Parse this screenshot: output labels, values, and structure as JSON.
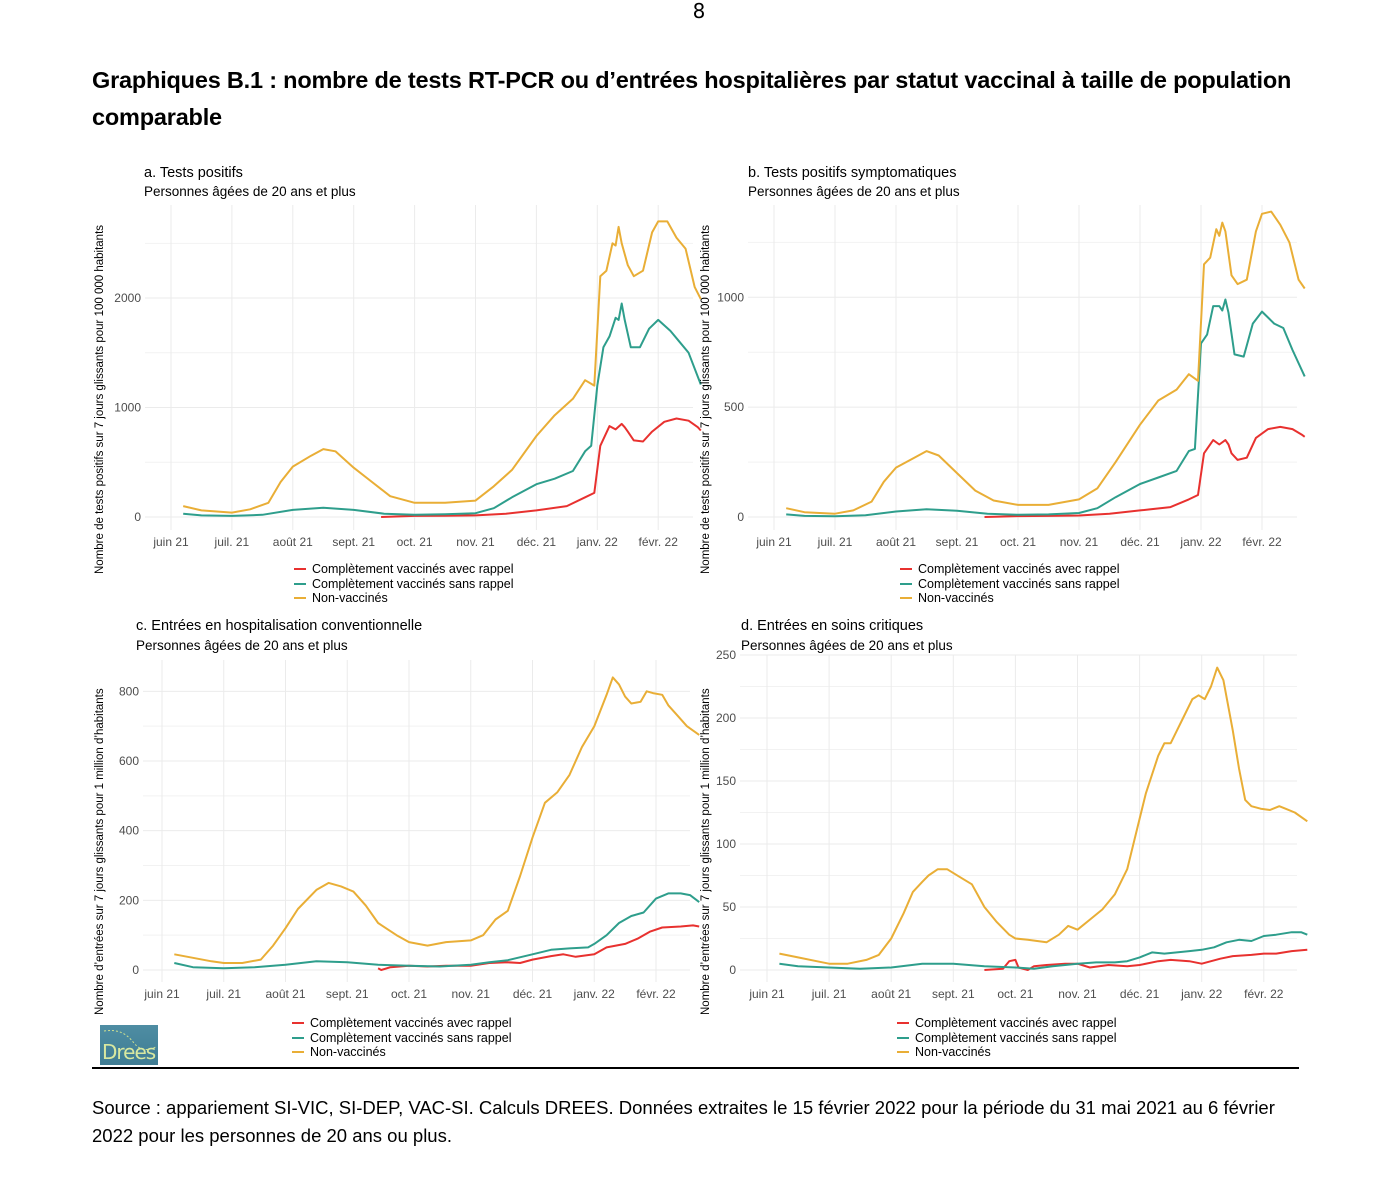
{
  "page_number": "8",
  "heading": "Graphiques B.1 : nombre de tests RT-PCR ou d’entrées hospitalières par statut vaccinal à taille de population comparable",
  "source": "Source : appariement SI-VIC, SI-DEP, VAC-SI. Calculs DREES. Données extraites le 15 février 2022 pour la période du 31 mai 2021 au 6 février 2022 pour les personnes de 20 ans ou plus.",
  "logo_text": "Drees",
  "colors": {
    "avec_rappel": "#e8312f",
    "sans_rappel": "#2e9e8c",
    "non_vaccines": "#e9ae36"
  },
  "legend": [
    "Complètement vaccinés avec rappel",
    "Complètement vaccinés sans rappel",
    "Non-vaccinés"
  ],
  "chart_data": [
    {
      "id": "a",
      "type": "line",
      "title": "a. Tests positifs",
      "subtitle": "Personnes âgées de 20 ans et plus",
      "ylabel": "Nombre de tests positifs sur 7 jours glissants pour 100 000 habitants",
      "xlabel": "",
      "x_ticks": [
        "juin 21",
        "juil. 21",
        "août 21",
        "sept. 21",
        "oct. 21",
        "nov. 21",
        "déc. 21",
        "janv. 22",
        "févr. 22"
      ],
      "y_ticks": [
        0,
        1000,
        2000
      ],
      "ylim": [
        -100,
        2850
      ],
      "grid": true,
      "legend_position": "bottom",
      "x_unit": "months since 1 June 2021",
      "series": [
        {
          "name": "Complètement vaccinés avec rappel",
          "key": "avec_rappel",
          "x": [
            3.45,
            3.7,
            4.0,
            4.5,
            5.0,
            5.5,
            6.0,
            6.5,
            6.8,
            6.95,
            7.05,
            7.2,
            7.3,
            7.4,
            7.45,
            7.5,
            7.6,
            7.75,
            7.9,
            8.1,
            8.3,
            8.5,
            8.65,
            8.7
          ],
          "y": [
            0,
            5,
            10,
            12,
            15,
            30,
            60,
            100,
            180,
            220,
            650,
            830,
            800,
            850,
            820,
            780,
            700,
            690,
            780,
            870,
            900,
            880,
            820,
            790
          ]
        },
        {
          "name": "Complètement vaccinés sans rappel",
          "key": "sans_rappel",
          "x": [
            0.2,
            0.5,
            1.0,
            1.5,
            2.0,
            2.5,
            3.0,
            3.5,
            4.0,
            4.5,
            5.0,
            5.3,
            5.6,
            6.0,
            6.3,
            6.6,
            6.8,
            6.9,
            7.0,
            7.1,
            7.2,
            7.3,
            7.35,
            7.4,
            7.45,
            7.55,
            7.7,
            7.85,
            8.0,
            8.2,
            8.35,
            8.5,
            8.7
          ],
          "y": [
            30,
            15,
            10,
            20,
            65,
            85,
            65,
            30,
            20,
            25,
            35,
            80,
            180,
            300,
            350,
            420,
            600,
            650,
            1200,
            1550,
            1650,
            1820,
            1800,
            1950,
            1800,
            1550,
            1550,
            1720,
            1800,
            1700,
            1600,
            1500,
            1210
          ]
        },
        {
          "name": "Non-vaccinés",
          "key": "non_vaccines",
          "x": [
            0.2,
            0.5,
            1.0,
            1.3,
            1.6,
            1.8,
            2.0,
            2.3,
            2.5,
            2.7,
            3.0,
            3.3,
            3.6,
            4.0,
            4.5,
            5.0,
            5.3,
            5.6,
            6.0,
            6.3,
            6.6,
            6.8,
            6.95,
            7.05,
            7.15,
            7.25,
            7.3,
            7.35,
            7.4,
            7.5,
            7.6,
            7.75,
            7.9,
            8.0,
            8.15,
            8.3,
            8.45,
            8.6,
            8.7
          ],
          "y": [
            100,
            60,
            40,
            70,
            130,
            320,
            460,
            560,
            620,
            600,
            450,
            320,
            190,
            130,
            130,
            150,
            280,
            430,
            740,
            930,
            1080,
            1250,
            1200,
            2200,
            2250,
            2500,
            2480,
            2650,
            2500,
            2300,
            2200,
            2250,
            2600,
            2700,
            2700,
            2550,
            2450,
            2100,
            1990
          ]
        }
      ]
    },
    {
      "id": "b",
      "type": "line",
      "title": "b. Tests positifs symptomatiques",
      "subtitle": "Personnes âgées de 20 ans et plus",
      "ylabel": "Nombre de tests positifs sur 7 jours glissants pour 100 000 habitants",
      "xlabel": "",
      "x_ticks": [
        "juin 21",
        "juil. 21",
        "août 21",
        "sept. 21",
        "oct. 21",
        "nov. 21",
        "déc. 21",
        "janv. 22",
        "févr. 22"
      ],
      "y_ticks": [
        0,
        500,
        1000
      ],
      "ylim": [
        -40,
        1420
      ],
      "grid": true,
      "legend_position": "bottom",
      "x_unit": "months since 1 June 2021",
      "series": [
        {
          "name": "Complètement vaccinés avec rappel",
          "key": "avec_rappel",
          "x": [
            3.45,
            3.7,
            4.0,
            4.5,
            5.0,
            5.5,
            6.0,
            6.5,
            6.8,
            6.95,
            7.05,
            7.2,
            7.3,
            7.4,
            7.45,
            7.5,
            7.6,
            7.75,
            7.9,
            8.1,
            8.3,
            8.5,
            8.65,
            8.7
          ],
          "y": [
            0,
            2,
            4,
            5,
            7,
            15,
            30,
            45,
            80,
            100,
            290,
            350,
            330,
            350,
            330,
            290,
            260,
            270,
            360,
            400,
            410,
            400,
            375,
            365
          ]
        },
        {
          "name": "Complètement vaccinés sans rappel",
          "key": "sans_rappel",
          "x": [
            0.2,
            0.5,
            1.0,
            1.5,
            2.0,
            2.5,
            3.0,
            3.5,
            4.0,
            4.5,
            5.0,
            5.3,
            5.6,
            6.0,
            6.3,
            6.6,
            6.8,
            6.9,
            7.0,
            7.1,
            7.2,
            7.3,
            7.35,
            7.4,
            7.45,
            7.55,
            7.7,
            7.85,
            8.0,
            8.2,
            8.35,
            8.5,
            8.7
          ],
          "y": [
            12,
            5,
            3,
            8,
            25,
            35,
            28,
            15,
            10,
            12,
            18,
            40,
            90,
            150,
            180,
            210,
            300,
            310,
            790,
            830,
            960,
            960,
            940,
            990,
            930,
            740,
            730,
            880,
            935,
            880,
            860,
            760,
            640
          ]
        },
        {
          "name": "Non-vaccinés",
          "key": "non_vaccines",
          "x": [
            0.2,
            0.5,
            1.0,
            1.3,
            1.6,
            1.8,
            2.0,
            2.3,
            2.5,
            2.7,
            3.0,
            3.3,
            3.6,
            4.0,
            4.5,
            5.0,
            5.3,
            5.6,
            6.0,
            6.3,
            6.6,
            6.8,
            6.95,
            7.05,
            7.15,
            7.25,
            7.3,
            7.35,
            7.4,
            7.5,
            7.6,
            7.75,
            7.9,
            8.0,
            8.15,
            8.3,
            8.45,
            8.6,
            8.7
          ],
          "y": [
            40,
            22,
            15,
            30,
            70,
            160,
            225,
            270,
            300,
            280,
            200,
            120,
            75,
            55,
            55,
            80,
            130,
            250,
            420,
            530,
            580,
            650,
            620,
            1150,
            1180,
            1310,
            1280,
            1340,
            1300,
            1100,
            1060,
            1080,
            1300,
            1380,
            1390,
            1330,
            1250,
            1080,
            1040
          ]
        }
      ]
    },
    {
      "id": "c",
      "type": "line",
      "title": "c. Entrées en hospitalisation conventionnelle",
      "subtitle": "Personnes âgées de 20 ans et plus",
      "ylabel": "Nombre d’entrées sur 7 jours glissants pour 1 million d’habitants",
      "xlabel": "",
      "x_ticks": [
        "juin 21",
        "juil. 21",
        "août 21",
        "sept. 21",
        "oct. 21",
        "nov. 21",
        "déc. 21",
        "janv. 22",
        "févr. 22"
      ],
      "y_ticks": [
        0,
        200,
        400,
        600,
        800
      ],
      "ylim": [
        -30,
        890
      ],
      "grid": true,
      "legend_position": "bottom",
      "x_unit": "months since 1 June 2021",
      "series": [
        {
          "name": "Complètement vaccinés avec rappel",
          "key": "avec_rappel",
          "x": [
            3.5,
            3.55,
            3.7,
            4.0,
            4.3,
            4.6,
            5.0,
            5.3,
            5.6,
            5.8,
            6.0,
            6.3,
            6.5,
            6.7,
            7.0,
            7.2,
            7.5,
            7.7,
            7.9,
            8.1,
            8.4,
            8.6,
            8.7
          ],
          "y": [
            5,
            0,
            8,
            12,
            10,
            12,
            12,
            20,
            22,
            20,
            30,
            40,
            45,
            38,
            45,
            65,
            75,
            90,
            110,
            122,
            125,
            128,
            125
          ]
        },
        {
          "name": "Complètement vaccinés sans rappel",
          "key": "sans_rappel",
          "x": [
            0.2,
            0.5,
            1.0,
            1.5,
            2.0,
            2.5,
            3.0,
            3.5,
            4.0,
            4.5,
            5.0,
            5.3,
            5.6,
            6.0,
            6.3,
            6.6,
            6.9,
            7.0,
            7.2,
            7.4,
            7.6,
            7.8,
            8.0,
            8.2,
            8.4,
            8.55,
            8.7
          ],
          "y": [
            20,
            8,
            5,
            8,
            15,
            25,
            22,
            15,
            12,
            10,
            15,
            22,
            28,
            45,
            58,
            62,
            65,
            75,
            100,
            135,
            155,
            165,
            205,
            220,
            220,
            215,
            195
          ]
        },
        {
          "name": "Non-vaccinés",
          "key": "non_vaccines",
          "x": [
            0.2,
            0.5,
            0.8,
            1.0,
            1.3,
            1.6,
            1.8,
            2.0,
            2.2,
            2.5,
            2.7,
            2.9,
            3.1,
            3.3,
            3.5,
            3.8,
            4.0,
            4.3,
            4.6,
            5.0,
            5.2,
            5.4,
            5.6,
            5.8,
            6.0,
            6.2,
            6.4,
            6.6,
            6.8,
            7.0,
            7.2,
            7.3,
            7.4,
            7.5,
            7.6,
            7.75,
            7.85,
            7.95,
            8.1,
            8.2,
            8.35,
            8.5,
            8.7
          ],
          "y": [
            45,
            35,
            25,
            20,
            20,
            30,
            70,
            120,
            175,
            230,
            250,
            240,
            225,
            185,
            135,
            100,
            80,
            70,
            80,
            85,
            100,
            145,
            170,
            270,
            380,
            480,
            510,
            560,
            640,
            700,
            790,
            840,
            820,
            785,
            765,
            770,
            800,
            795,
            790,
            760,
            730,
            700,
            675
          ]
        }
      ]
    },
    {
      "id": "d",
      "type": "line",
      "title": "d. Entrées en soins critiques",
      "subtitle": "Personnes âgées de 20 ans et plus",
      "ylabel": "Nombre d’entrées sur 7 jours glissants pour 1 million d’habitants",
      "xlabel": "",
      "x_ticks": [
        "juin 21",
        "juil. 21",
        "août 21",
        "sept. 21",
        "oct. 21",
        "nov. 21",
        "déc. 21",
        "janv. 22",
        "févr. 22"
      ],
      "y_ticks": [
        0,
        50,
        100,
        150,
        200,
        250
      ],
      "ylim": [
        -8,
        250
      ],
      "grid": true,
      "legend_position": "bottom",
      "x_unit": "months since 1 June 2021",
      "series": [
        {
          "name": "Complètement vaccinés avec rappel",
          "key": "avec_rappel",
          "x": [
            3.5,
            3.8,
            3.9,
            4.0,
            4.05,
            4.2,
            4.3,
            4.5,
            4.8,
            5.0,
            5.2,
            5.5,
            5.8,
            6.0,
            6.3,
            6.5,
            6.8,
            7.0,
            7.3,
            7.5,
            7.8,
            8.0,
            8.2,
            8.45,
            8.7
          ],
          "y": [
            0,
            1,
            7,
            8,
            2,
            0,
            3,
            4,
            5,
            5,
            2,
            4,
            3,
            4,
            7,
            8,
            7,
            5,
            9,
            11,
            12,
            13,
            13,
            15,
            16
          ]
        },
        {
          "name": "Complètement vaccinés sans rappel",
          "key": "sans_rappel",
          "x": [
            0.2,
            0.5,
            1.0,
            1.5,
            2.0,
            2.5,
            3.0,
            3.5,
            4.0,
            4.3,
            4.6,
            5.0,
            5.3,
            5.6,
            5.8,
            6.0,
            6.2,
            6.4,
            6.6,
            6.8,
            7.0,
            7.2,
            7.4,
            7.6,
            7.8,
            8.0,
            8.2,
            8.45,
            8.6,
            8.7
          ],
          "y": [
            5,
            3,
            2,
            1,
            2,
            5,
            5,
            3,
            2,
            1,
            3,
            5,
            6,
            6,
            7,
            10,
            14,
            13,
            14,
            15,
            16,
            18,
            22,
            24,
            23,
            27,
            28,
            30,
            30,
            28
          ]
        },
        {
          "name": "Non-vaccinés",
          "key": "non_vaccines",
          "x": [
            0.2,
            0.5,
            0.8,
            1.0,
            1.3,
            1.6,
            1.8,
            2.0,
            2.2,
            2.35,
            2.5,
            2.6,
            2.75,
            2.9,
            3.1,
            3.3,
            3.5,
            3.7,
            3.9,
            4.0,
            4.2,
            4.5,
            4.7,
            4.85,
            5.0,
            5.2,
            5.4,
            5.6,
            5.8,
            5.9,
            6.0,
            6.1,
            6.2,
            6.3,
            6.4,
            6.5,
            6.6,
            6.7,
            6.85,
            6.95,
            7.05,
            7.15,
            7.25,
            7.35,
            7.5,
            7.6,
            7.7,
            7.8,
            7.95,
            8.1,
            8.25,
            8.35,
            8.5,
            8.7
          ],
          "y": [
            13,
            10,
            7,
            5,
            5,
            8,
            12,
            25,
            45,
            62,
            70,
            75,
            80,
            80,
            74,
            68,
            50,
            38,
            28,
            25,
            24,
            22,
            28,
            35,
            32,
            40,
            48,
            60,
            80,
            100,
            120,
            140,
            155,
            170,
            180,
            180,
            190,
            200,
            215,
            218,
            215,
            225,
            240,
            230,
            190,
            160,
            135,
            130,
            128,
            127,
            130,
            128,
            125,
            118
          ]
        }
      ]
    }
  ]
}
